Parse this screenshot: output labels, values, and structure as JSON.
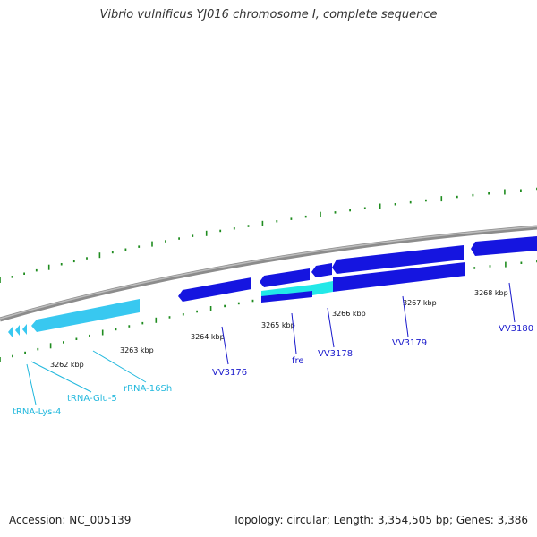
{
  "title": "Vibrio vulnificus YJ016 chromosome I, complete sequence",
  "accession_text": "Accession: NC_005139",
  "stats_text": "Topology: circular; Length: 3,354,505 bp; Genes: 3,386",
  "colors": {
    "backbone": "#8c8c8c",
    "cds": "#1515e0",
    "rna": "#38c8f0",
    "selected": "#22e8e8",
    "ticks": "#1f8c1f",
    "cds_label": "#1a1acc",
    "rna_label": "#22b8dd"
  },
  "kbp_labels": [
    "3262 kbp",
    "3263 kbp",
    "3264 kbp",
    "3265 kbp",
    "3266 kbp",
    "3267 kbp",
    "3268 kbp"
  ],
  "gene_labels": [
    {
      "text": "VV3176",
      "kind": "cds"
    },
    {
      "text": "fre",
      "kind": "cds"
    },
    {
      "text": "VV3178",
      "kind": "cds"
    },
    {
      "text": "VV3179",
      "kind": "cds"
    },
    {
      "text": "VV3180",
      "kind": "cds"
    },
    {
      "text": "rRNA-16Sh",
      "kind": "rna"
    },
    {
      "text": "tRNA-Glu-5",
      "kind": "rna"
    },
    {
      "text": "tRNA-Lys-4",
      "kind": "rna"
    }
  ]
}
